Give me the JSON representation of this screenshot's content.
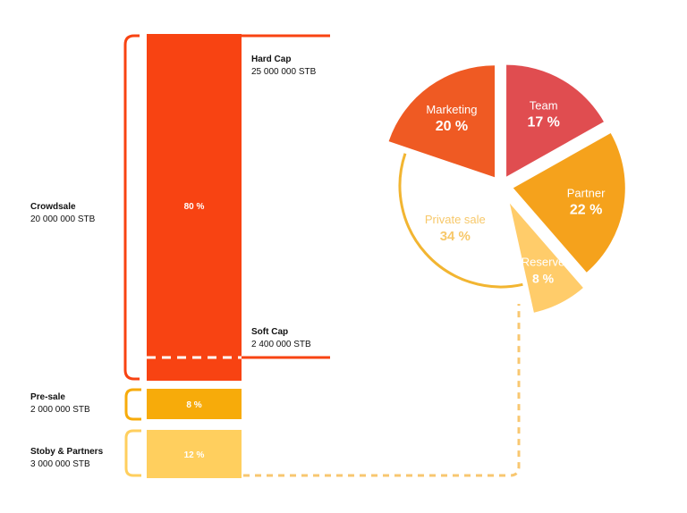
{
  "colors": {
    "crowdsale": "#f84312",
    "presale": "#f7ab0a",
    "partners": "#ffcf5e",
    "marketing": "#ef5a23",
    "team": "#e04d50",
    "partner": "#f5a21c",
    "reserve": "#ffcc6a",
    "private_sale_ring": "#f2b531",
    "private_sale_text": "#f7c86a"
  },
  "bar_labels": {
    "crowdsale_pct": "80 %",
    "presale_pct": "8 %",
    "partners_pct": "12 %"
  },
  "left_labels": {
    "crowdsale_title": "Crowdsale",
    "crowdsale_amount": "20 000 000 STB",
    "presale_title": "Pre-sale",
    "presale_amount": "2 000 000 STB",
    "partners_title": "Stoby & Partners",
    "partners_amount": "3 000 000 STB"
  },
  "caps": {
    "hard_title": "Hard Cap",
    "hard_amount": "25 000 000 STB",
    "soft_title": "Soft Cap",
    "soft_amount": "2 400 000 STB"
  },
  "chart_data": [
    {
      "type": "bar",
      "categories": [
        "Crowdsale",
        "Pre-sale",
        "Stoby & Partners"
      ],
      "values": [
        80,
        8,
        12
      ],
      "value_labels": [
        "80 %",
        "8 %",
        "12 %"
      ],
      "tokens": [
        "20 000 000 STB",
        "2 000 000 STB",
        "3 000 000 STB"
      ],
      "annotations": [
        "Hard Cap 25 000 000 STB",
        "Soft Cap 2 400 000 STB"
      ]
    },
    {
      "type": "pie",
      "slices": [
        {
          "name": "Team",
          "value": 17,
          "label": "17 %"
        },
        {
          "name": "Partner",
          "value": 22,
          "label": "22 %"
        },
        {
          "name": "Reserve",
          "value": 8,
          "label": "8 %"
        },
        {
          "name": "Private sale",
          "value": 34,
          "label": "34 %"
        },
        {
          "name": "Marketing",
          "value": 20,
          "label": "20 %"
        }
      ]
    }
  ]
}
